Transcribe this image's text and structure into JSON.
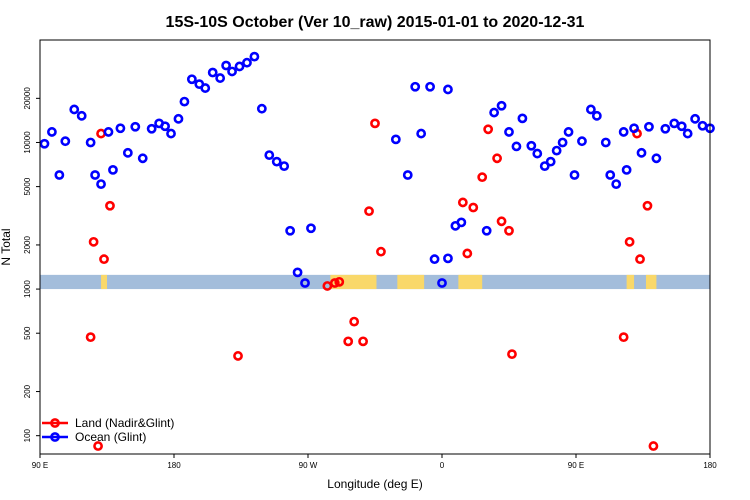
{
  "chart_data": {
    "type": "scatter",
    "title": "15S-10S October (Ver 10_raw)   2015-01-01 to 2020-12-31",
    "xlabel": "Longitude (deg E)",
    "ylabel": "N Total",
    "x_scale": "linear",
    "y_scale": "log",
    "xlim": [
      90,
      540
    ],
    "ylim": [
      75,
      50000
    ],
    "x_ticks": [
      {
        "value": 90,
        "label": "90 E"
      },
      {
        "value": 180,
        "label": "180"
      },
      {
        "value": 270,
        "label": "90 W"
      },
      {
        "value": 360,
        "label": "0"
      },
      {
        "value": 450,
        "label": "90 E"
      },
      {
        "value": 540,
        "label": "180"
      }
    ],
    "y_ticks": [
      100,
      200,
      500,
      1000,
      2000,
      5000,
      10000,
      20000
    ],
    "grid": false,
    "legend_position": "bottom-left",
    "colors": {
      "land": "#ff0000",
      "ocean": "#0000ff",
      "map_ocean": "#a3bddb",
      "map_land": "#f9d86a"
    },
    "map_strip": {
      "y_range": [
        1000,
        1250
      ],
      "land_spans": [
        [
          131,
          135
        ],
        [
          285,
          316
        ],
        [
          330,
          348
        ],
        [
          371,
          387
        ],
        [
          484,
          489
        ],
        [
          497,
          504
        ]
      ]
    },
    "series": [
      {
        "name": "Land (Nadir&Glint)",
        "color": "#ff0000",
        "points": [
          [
            124,
            470
          ],
          [
            126,
            2100
          ],
          [
            131,
            11500
          ],
          [
            133,
            1600
          ],
          [
            137,
            3700
          ],
          [
            129,
            85
          ],
          [
            223,
            350
          ],
          [
            283,
            1050
          ],
          [
            288,
            1100
          ],
          [
            291,
            1120
          ],
          [
            297,
            440
          ],
          [
            301,
            600
          ],
          [
            307,
            440
          ],
          [
            311,
            3400
          ],
          [
            315,
            13500
          ],
          [
            319,
            1800
          ],
          [
            374,
            3900
          ],
          [
            377,
            1750
          ],
          [
            381,
            3600
          ],
          [
            387,
            5800
          ],
          [
            391,
            12300
          ],
          [
            397,
            7800
          ],
          [
            400,
            2900
          ],
          [
            405,
            2500
          ],
          [
            407,
            360
          ],
          [
            482,
            470
          ],
          [
            486,
            2100
          ],
          [
            491,
            11500
          ],
          [
            493,
            1600
          ],
          [
            498,
            3700
          ],
          [
            502,
            85
          ]
        ]
      },
      {
        "name": "Ocean (Glint)",
        "color": "#0000ff",
        "points": [
          [
            93,
            9800
          ],
          [
            98,
            11800
          ],
          [
            103,
            6000
          ],
          [
            107,
            10200
          ],
          [
            113,
            16800
          ],
          [
            118,
            15200
          ],
          [
            124,
            10000
          ],
          [
            127,
            6000
          ],
          [
            131,
            5200
          ],
          [
            136,
            11800
          ],
          [
            139,
            6500
          ],
          [
            144,
            12500
          ],
          [
            149,
            8500
          ],
          [
            154,
            12800
          ],
          [
            159,
            7800
          ],
          [
            165,
            12400
          ],
          [
            170,
            13500
          ],
          [
            174,
            12900
          ],
          [
            178,
            11500
          ],
          [
            183,
            14500
          ],
          [
            187,
            19000
          ],
          [
            192,
            27000
          ],
          [
            197,
            25000
          ],
          [
            201,
            23500
          ],
          [
            206,
            30000
          ],
          [
            211,
            27500
          ],
          [
            215,
            33500
          ],
          [
            219,
            30500
          ],
          [
            224,
            33000
          ],
          [
            229,
            35000
          ],
          [
            234,
            38500
          ],
          [
            239,
            17000
          ],
          [
            244,
            8200
          ],
          [
            249,
            7400
          ],
          [
            254,
            6900
          ],
          [
            258,
            2500
          ],
          [
            263,
            1300
          ],
          [
            268,
            1100
          ],
          [
            272,
            2600
          ],
          [
            355,
            1600
          ],
          [
            360,
            1100
          ],
          [
            364,
            1620
          ],
          [
            369,
            2700
          ],
          [
            373,
            2850
          ],
          [
            390,
            2500
          ],
          [
            395,
            16000
          ],
          [
            400,
            17800
          ],
          [
            405,
            11800
          ],
          [
            410,
            9400
          ],
          [
            414,
            14600
          ],
          [
            420,
            9500
          ],
          [
            424,
            8400
          ],
          [
            429,
            6900
          ],
          [
            433,
            7400
          ],
          [
            437,
            8800
          ],
          [
            441,
            10000
          ],
          [
            445,
            11800
          ],
          [
            449,
            6000
          ],
          [
            454,
            10200
          ],
          [
            460,
            16800
          ],
          [
            464,
            15200
          ],
          [
            470,
            10000
          ],
          [
            473,
            6000
          ],
          [
            477,
            5200
          ],
          [
            482,
            11800
          ],
          [
            484,
            6500
          ],
          [
            489,
            12500
          ],
          [
            494,
            8500
          ],
          [
            499,
            12800
          ],
          [
            504,
            7800
          ],
          [
            510,
            12400
          ],
          [
            516,
            13500
          ],
          [
            521,
            12900
          ],
          [
            525,
            11500
          ],
          [
            530,
            14500
          ],
          [
            535,
            13000
          ],
          [
            540,
            12500
          ],
          [
            329,
            10500
          ],
          [
            337,
            6000
          ],
          [
            342,
            24000
          ],
          [
            346,
            11500
          ],
          [
            352,
            24000
          ],
          [
            364,
            23000
          ]
        ]
      }
    ]
  }
}
